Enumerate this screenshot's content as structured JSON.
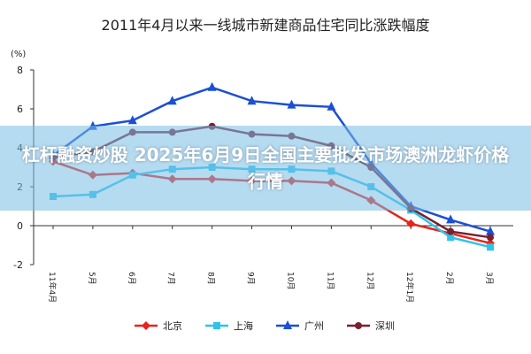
{
  "chart_data": {
    "type": "line",
    "title": "2011年4月以来一线城市新建商品住宅同比涨跌幅度",
    "y_label": "(%)",
    "categories": [
      "11年4月",
      "5月",
      "6月",
      "7月",
      "8月",
      "9月",
      "10月",
      "11月",
      "12月",
      "12年1月",
      "2月",
      "3月"
    ],
    "ylim": [
      -2,
      8
    ],
    "yticks": [
      -2,
      0,
      2,
      4,
      6,
      8
    ],
    "legend": "bottom",
    "series": [
      {
        "name": "北京",
        "color": "#e8231b",
        "marker": "diamond",
        "values": [
          3.3,
          2.6,
          2.7,
          2.4,
          2.4,
          2.3,
          2.3,
          2.2,
          1.3,
          0.1,
          -0.4,
          -0.9
        ]
      },
      {
        "name": "上海",
        "color": "#2ec4ea",
        "marker": "square",
        "values": [
          1.5,
          1.6,
          2.6,
          2.9,
          3.0,
          2.9,
          2.9,
          2.8,
          2.0,
          0.8,
          -0.6,
          -1.1
        ]
      },
      {
        "name": "广州",
        "color": "#1c4fd6",
        "marker": "triangle",
        "values": [
          3.6,
          5.1,
          5.4,
          6.4,
          7.1,
          6.4,
          6.2,
          6.1,
          3.2,
          1.0,
          0.3,
          -0.3
        ]
      },
      {
        "name": "深圳",
        "color": "#7b1f2e",
        "marker": "circle",
        "values": [
          3.5,
          3.8,
          4.8,
          4.8,
          5.1,
          4.7,
          4.6,
          4.1,
          3.0,
          0.9,
          -0.3,
          -0.6
        ]
      }
    ]
  },
  "banner": {
    "title": "杠杆融资炒股 2025年6月9日全国主要批发市场澳洲龙虾价格行情"
  }
}
